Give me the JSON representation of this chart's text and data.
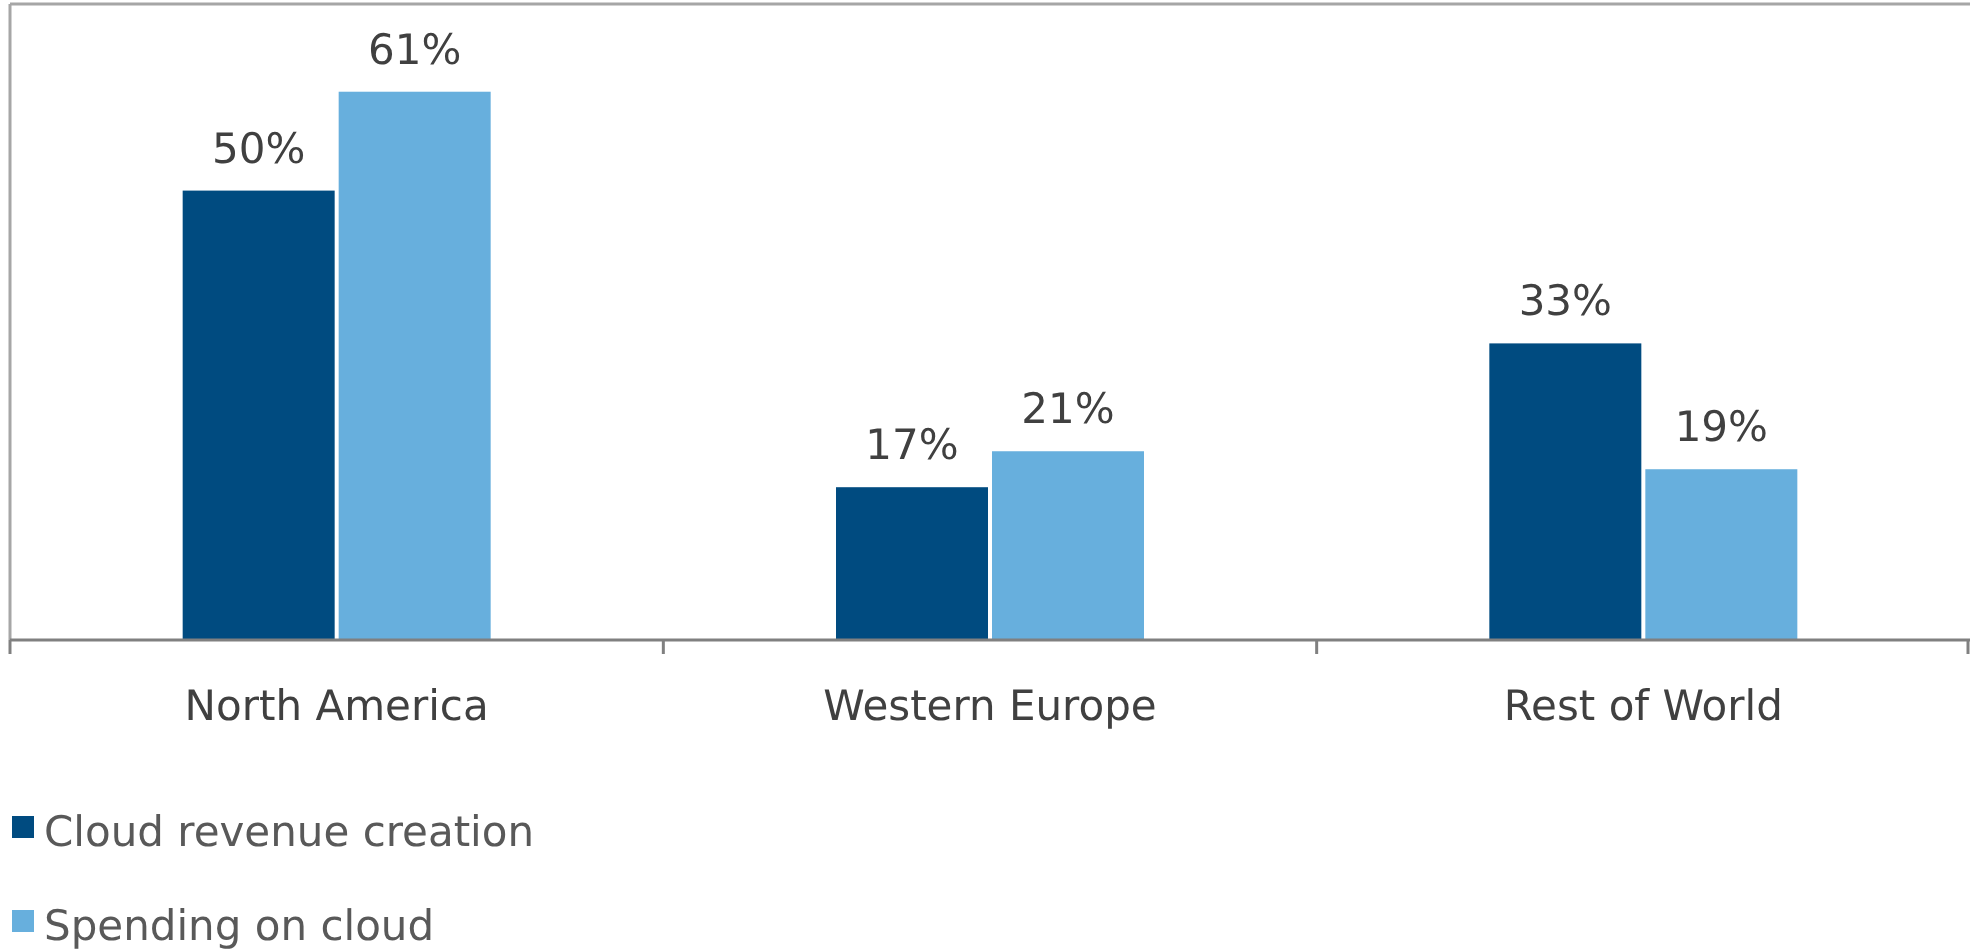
{
  "chart_data": {
    "type": "bar",
    "categories": [
      "North America",
      "Western Europe",
      "Rest of World"
    ],
    "series": [
      {
        "name": "Cloud revenue creation",
        "color": "#004b80",
        "values": [
          50,
          17,
          33
        ],
        "value_labels": [
          "50%",
          "17%",
          "33%"
        ]
      },
      {
        "name": "Spending on cloud",
        "color": "#67afdd",
        "values": [
          61,
          21,
          19
        ],
        "value_labels": [
          "61%",
          "21%",
          "19%"
        ]
      }
    ],
    "legend": "bottom left"
  }
}
